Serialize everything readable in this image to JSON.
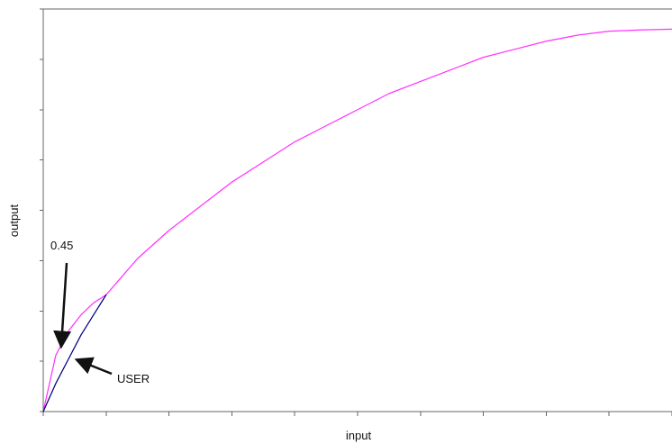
{
  "chart_data": {
    "type": "line",
    "title": "",
    "xlabel": "input",
    "ylabel": "output",
    "xlim": [
      0,
      1
    ],
    "ylim": [
      0,
      1
    ],
    "grid": false,
    "legend": "none",
    "series": [
      {
        "color": "#ff33ff",
        "x": [
          0,
          0.02,
          0.04,
          0.06,
          0.08,
          0.1,
          0.15,
          0.2,
          0.25,
          0.3,
          0.35,
          0.4,
          0.45,
          0.5,
          0.55,
          0.6,
          0.65,
          0.7,
          0.75,
          0.8,
          0.85,
          0.9,
          0.95,
          1
        ],
        "y": [
          0,
          0.14,
          0.2,
          0.24,
          0.27,
          0.29,
          0.38,
          0.45,
          0.51,
          0.57,
          0.62,
          0.67,
          0.71,
          0.75,
          0.79,
          0.82,
          0.85,
          0.88,
          0.9,
          0.92,
          0.935,
          0.945,
          0.948,
          0.95
        ]
      },
      {
        "color": "#000080",
        "x": [
          0,
          0.02,
          0.04,
          0.06,
          0.08,
          0.1
        ],
        "y": [
          0,
          0.07,
          0.13,
          0.19,
          0.24,
          0.29
        ]
      }
    ],
    "annotations": [
      {
        "text": "0.45",
        "arrow_tip": [
          0.02,
          0.15
        ]
      },
      {
        "text": "USER",
        "arrow_tip": [
          0.05,
          0.12
        ]
      }
    ]
  }
}
